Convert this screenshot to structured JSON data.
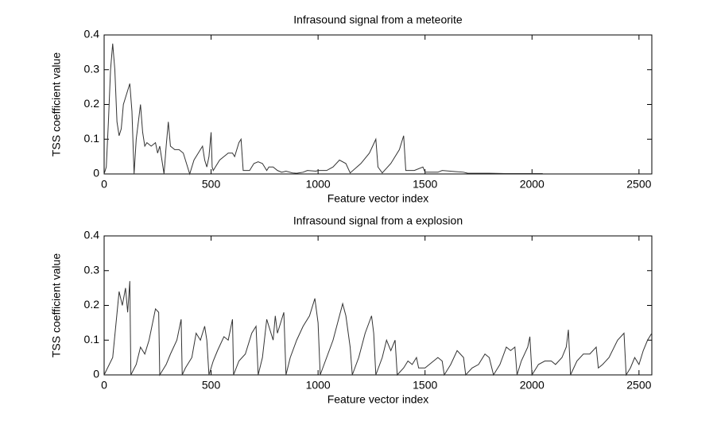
{
  "chart_data": [
    {
      "type": "line",
      "title": "Infrasound signal from a meteorite",
      "xlabel": "Feature vector index",
      "ylabel": "TSS coefficient value",
      "color": "#333333",
      "xlim": [
        0,
        2560
      ],
      "xticks": [
        0,
        500,
        1000,
        1500,
        2000,
        2500
      ],
      "ylim": [
        0,
        0.4
      ],
      "yticks": [
        0,
        0.1,
        0.2,
        0.3,
        0.4
      ],
      "x": [
        0,
        10,
        20,
        30,
        40,
        50,
        60,
        70,
        80,
        90,
        100,
        110,
        120,
        130,
        140,
        150,
        160,
        170,
        180,
        190,
        200,
        220,
        240,
        250,
        260,
        270,
        280,
        290,
        300,
        310,
        330,
        350,
        370,
        390,
        400,
        420,
        440,
        460,
        470,
        480,
        490,
        500,
        505,
        510,
        520,
        540,
        560,
        580,
        600,
        610,
        630,
        640,
        650,
        680,
        700,
        720,
        740,
        760,
        770,
        790,
        810,
        830,
        850,
        880,
        900,
        930,
        950,
        990,
        1000,
        1040,
        1070,
        1100,
        1130,
        1150,
        1200,
        1240,
        1270,
        1280,
        1300,
        1340,
        1380,
        1400,
        1410,
        1450,
        1490,
        1500,
        1560,
        1580,
        1640,
        1680,
        1700,
        1800,
        1900,
        2000,
        2050
      ],
      "values": [
        0,
        0.02,
        0.15,
        0.3,
        0.375,
        0.3,
        0.15,
        0.11,
        0.13,
        0.2,
        0.22,
        0.24,
        0.26,
        0.18,
        0,
        0.1,
        0.15,
        0.2,
        0.12,
        0.08,
        0.09,
        0.08,
        0.09,
        0.06,
        0.08,
        0.04,
        0,
        0.08,
        0.15,
        0.08,
        0.07,
        0.07,
        0.06,
        0.02,
        0,
        0.04,
        0.06,
        0.08,
        0.04,
        0.02,
        0.05,
        0.12,
        0.02,
        0.01,
        0.02,
        0.04,
        0.05,
        0.06,
        0.06,
        0.05,
        0.09,
        0.1,
        0.01,
        0.01,
        0.03,
        0.035,
        0.03,
        0.01,
        0.02,
        0.02,
        0.01,
        0.005,
        0.008,
        0.003,
        0.002,
        0.005,
        0.01,
        0.008,
        0.01,
        0.01,
        0.02,
        0.04,
        0.03,
        0.003,
        0.03,
        0.06,
        0.1,
        0.02,
        0.003,
        0.03,
        0.07,
        0.11,
        0.01,
        0.01,
        0.02,
        0.005,
        0.005,
        0.01,
        0.007,
        0.005,
        0.002,
        0.002,
        0.001,
        0.001,
        0.001
      ]
    },
    {
      "type": "line",
      "title": "Infrasound signal from a explosion",
      "xlabel": "Feature vector index",
      "ylabel": "TSS coefficient value",
      "color": "#333333",
      "xlim": [
        0,
        2560
      ],
      "xticks": [
        0,
        500,
        1000,
        1500,
        2000,
        2500
      ],
      "ylim": [
        0,
        0.4
      ],
      "yticks": [
        0,
        0.1,
        0.2,
        0.3,
        0.4
      ],
      "x": [
        0,
        40,
        70,
        85,
        100,
        110,
        120,
        125,
        150,
        170,
        190,
        210,
        240,
        255,
        260,
        290,
        310,
        340,
        360,
        365,
        380,
        410,
        430,
        450,
        470,
        480,
        490,
        510,
        530,
        560,
        580,
        600,
        605,
        630,
        660,
        690,
        710,
        720,
        740,
        760,
        790,
        800,
        810,
        840,
        850,
        870,
        900,
        930,
        960,
        985,
        1000,
        1010,
        1040,
        1070,
        1100,
        1115,
        1130,
        1150,
        1160,
        1190,
        1220,
        1250,
        1260,
        1270,
        1300,
        1320,
        1340,
        1360,
        1370,
        1400,
        1420,
        1440,
        1460,
        1470,
        1500,
        1540,
        1560,
        1580,
        1590,
        1620,
        1650,
        1680,
        1690,
        1720,
        1750,
        1780,
        1800,
        1820,
        1850,
        1880,
        1900,
        1920,
        1930,
        1950,
        1980,
        1990,
        2000,
        2030,
        2060,
        2090,
        2110,
        2140,
        2160,
        2170,
        2180,
        2210,
        2240,
        2270,
        2300,
        2310,
        2330,
        2360,
        2400,
        2430,
        2440,
        2460,
        2480,
        2500,
        2520,
        2540,
        2560
      ],
      "values": [
        0,
        0.05,
        0.24,
        0.2,
        0.25,
        0.18,
        0.27,
        0,
        0.03,
        0.08,
        0.06,
        0.1,
        0.19,
        0.18,
        0,
        0.03,
        0.06,
        0.1,
        0.16,
        0,
        0.02,
        0.05,
        0.12,
        0.1,
        0.14,
        0.1,
        0,
        0.04,
        0.07,
        0.11,
        0.1,
        0.16,
        0,
        0.04,
        0.06,
        0.12,
        0.14,
        0,
        0.05,
        0.16,
        0.1,
        0.17,
        0.12,
        0.18,
        0,
        0.05,
        0.1,
        0.14,
        0.17,
        0.22,
        0.15,
        0,
        0.05,
        0.1,
        0.17,
        0.205,
        0.17,
        0.08,
        0,
        0.05,
        0.12,
        0.17,
        0.12,
        0,
        0.05,
        0.1,
        0.07,
        0.1,
        0,
        0.02,
        0.04,
        0.03,
        0.05,
        0.02,
        0.02,
        0.04,
        0.05,
        0.04,
        0,
        0.03,
        0.07,
        0.05,
        0,
        0.02,
        0.03,
        0.06,
        0.05,
        0,
        0.03,
        0.08,
        0.07,
        0.08,
        0,
        0.04,
        0.08,
        0.11,
        0,
        0.03,
        0.04,
        0.04,
        0.03,
        0.05,
        0.08,
        0.13,
        0,
        0.04,
        0.06,
        0.06,
        0.08,
        0.02,
        0.03,
        0.05,
        0.1,
        0.12,
        0,
        0.02,
        0.05,
        0.03,
        0.07,
        0.1,
        0.12
      ]
    }
  ]
}
